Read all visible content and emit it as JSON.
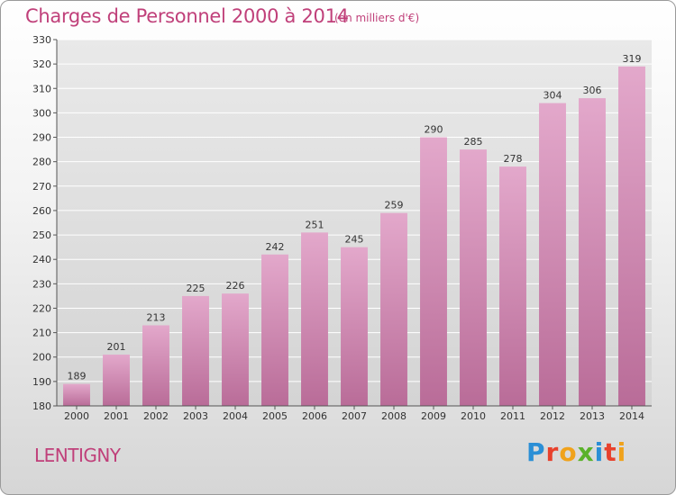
{
  "header": {
    "title": "Charges de Personnel 2000 à 2014",
    "subtitle": "(en milliers d'€)"
  },
  "footer": {
    "commune": "LENTIGNY",
    "logo_text": "Proxiti"
  },
  "colors": {
    "bar_top": "#e3a8cb",
    "bar_bottom": "#b96c98",
    "title": "#c0407a",
    "grid": "#ffffff"
  },
  "chart_data": {
    "type": "bar",
    "title": "Charges de Personnel 2000 à 2014",
    "subtitle": "(en milliers d'€)",
    "xlabel": "",
    "ylabel": "",
    "categories": [
      "2000",
      "2001",
      "2002",
      "2003",
      "2004",
      "2005",
      "2006",
      "2007",
      "2008",
      "2009",
      "2010",
      "2011",
      "2012",
      "2013",
      "2014"
    ],
    "values": [
      189,
      201,
      213,
      225,
      226,
      242,
      251,
      245,
      259,
      290,
      285,
      278,
      304,
      306,
      319
    ],
    "ylim": [
      180,
      330
    ],
    "yticks": [
      180,
      190,
      200,
      210,
      220,
      230,
      240,
      250,
      260,
      270,
      280,
      290,
      300,
      310,
      320,
      330
    ],
    "grid": true,
    "legend": "none"
  }
}
